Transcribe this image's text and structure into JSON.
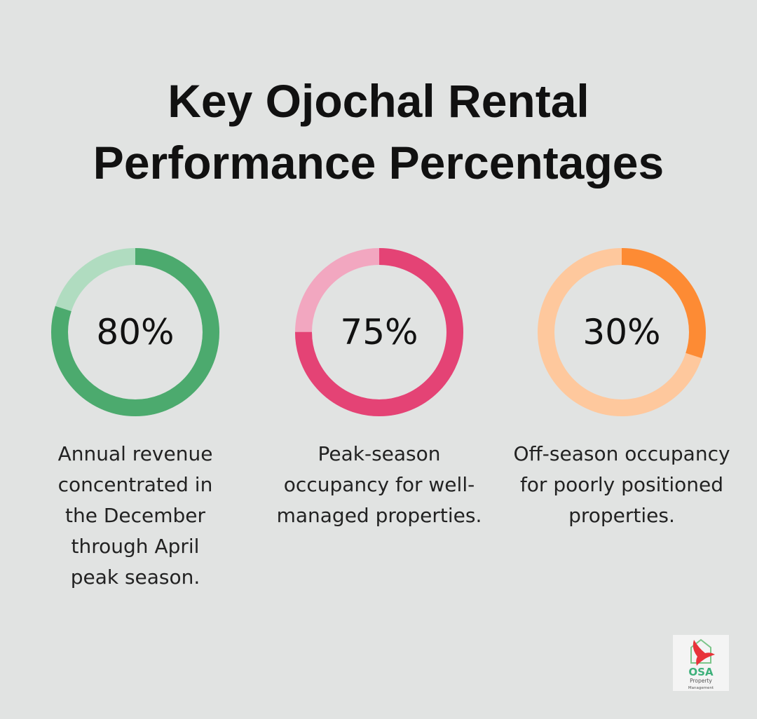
{
  "title_line1": "Key Ojochal Rental",
  "title_line2": "Performance Percentages",
  "chart_data": [
    {
      "type": "pie",
      "variant": "donut",
      "value": 80,
      "label": "80%",
      "caption": "Annual revenue concentrated in the December through April peak season.",
      "color": "#4caa6e",
      "track_color": "#b0dcc0"
    },
    {
      "type": "pie",
      "variant": "donut",
      "value": 75,
      "label": "75%",
      "caption": "Peak-season occupancy for well-managed properties.",
      "color": "#e44375",
      "track_color": "#f2a7c0"
    },
    {
      "type": "pie",
      "variant": "donut",
      "value": 30,
      "label": "30%",
      "caption": "Off-season occupancy for poorly positioned properties.",
      "color": "#fd8b34",
      "track_color": "#fec89d"
    }
  ],
  "logo": {
    "text": "OSA",
    "sub1": "Property",
    "sub2": "Management"
  }
}
